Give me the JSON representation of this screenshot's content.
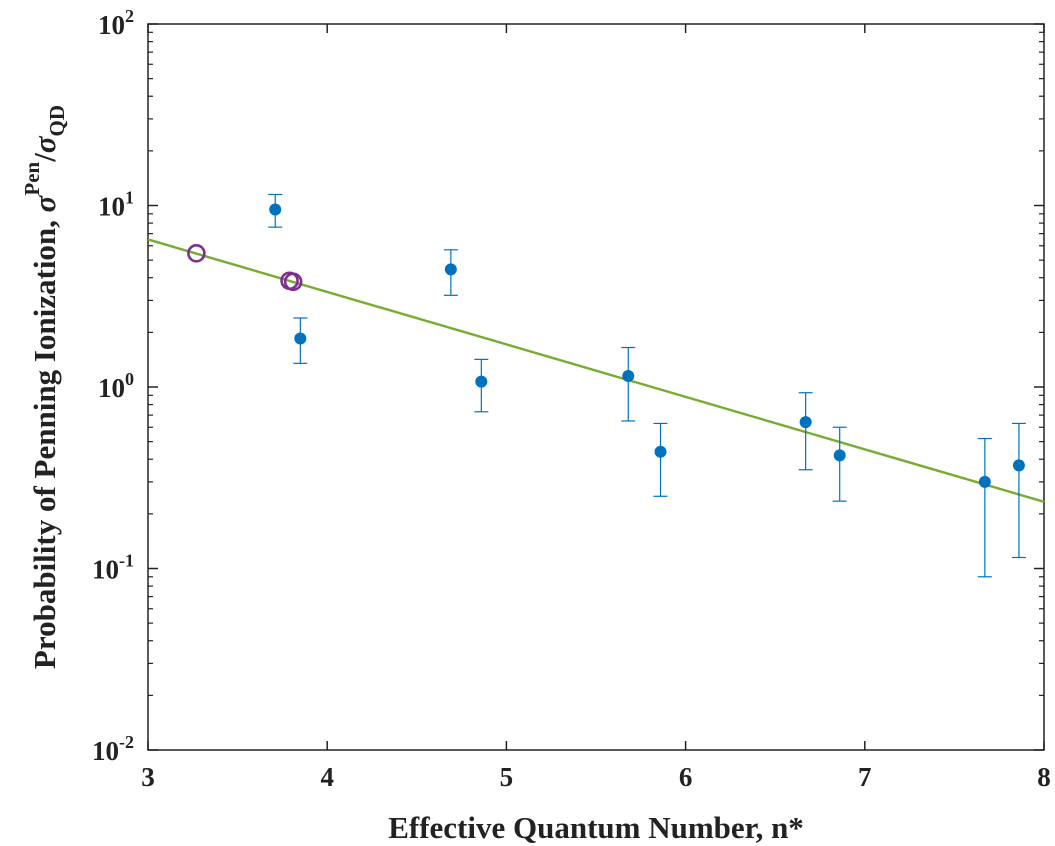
{
  "chart_data": {
    "type": "scatter",
    "xlabel": "Effective Quantum Number, n*",
    "ylabel": {
      "text": "Probability of Penning Ionization, ",
      "symbol": "σ",
      "superscript": "Pen",
      "slash": "/",
      "symbol2": "σ",
      "subscript": "QD"
    },
    "xlim": [
      3,
      8
    ],
    "ylim": [
      0.01,
      100
    ],
    "yscale": "log",
    "grid": false,
    "x_ticks": [
      {
        "value": 3,
        "label": "3"
      },
      {
        "value": 4,
        "label": "4"
      },
      {
        "value": 5,
        "label": "5"
      },
      {
        "value": 6,
        "label": "6"
      },
      {
        "value": 7,
        "label": "7"
      },
      {
        "value": 8,
        "label": "8"
      }
    ],
    "y_ticks": [
      {
        "value": 0.01,
        "base": "10",
        "exp": "-2"
      },
      {
        "value": 0.1,
        "base": "10",
        "exp": "-1"
      },
      {
        "value": 1,
        "base": "10",
        "exp": "0"
      },
      {
        "value": 10,
        "base": "10",
        "exp": "1"
      },
      {
        "value": 100,
        "base": "10",
        "exp": "2"
      }
    ],
    "series": [
      {
        "kind": "points-errorbars",
        "color": "#0072BD",
        "points": [
          {
            "x": 3.71,
            "y": 9.5,
            "lo": 7.6,
            "hi": 11.5
          },
          {
            "x": 3.85,
            "y": 1.85,
            "lo": 1.35,
            "hi": 2.4
          },
          {
            "x": 4.69,
            "y": 4.45,
            "lo": 3.2,
            "hi": 5.7
          },
          {
            "x": 4.86,
            "y": 1.07,
            "lo": 0.73,
            "hi": 1.42
          },
          {
            "x": 5.68,
            "y": 1.15,
            "lo": 0.65,
            "hi": 1.65
          },
          {
            "x": 5.86,
            "y": 0.44,
            "lo": 0.25,
            "hi": 0.63
          },
          {
            "x": 6.67,
            "y": 0.64,
            "lo": 0.35,
            "hi": 0.93
          },
          {
            "x": 6.86,
            "y": 0.42,
            "lo": 0.235,
            "hi": 0.6
          },
          {
            "x": 7.67,
            "y": 0.3,
            "lo": 0.09,
            "hi": 0.52
          },
          {
            "x": 7.86,
            "y": 0.37,
            "lo": 0.115,
            "hi": 0.63
          }
        ]
      },
      {
        "kind": "open-circles",
        "color": "#7E2F8E",
        "points": [
          {
            "x": 3.27,
            "y": 5.45
          },
          {
            "x": 3.79,
            "y": 3.85
          },
          {
            "x": 3.81,
            "y": 3.8
          }
        ]
      },
      {
        "kind": "fit-line",
        "color": "#77AC30",
        "x": [
          3,
          8
        ],
        "y": [
          6.5,
          0.233
        ]
      }
    ]
  }
}
